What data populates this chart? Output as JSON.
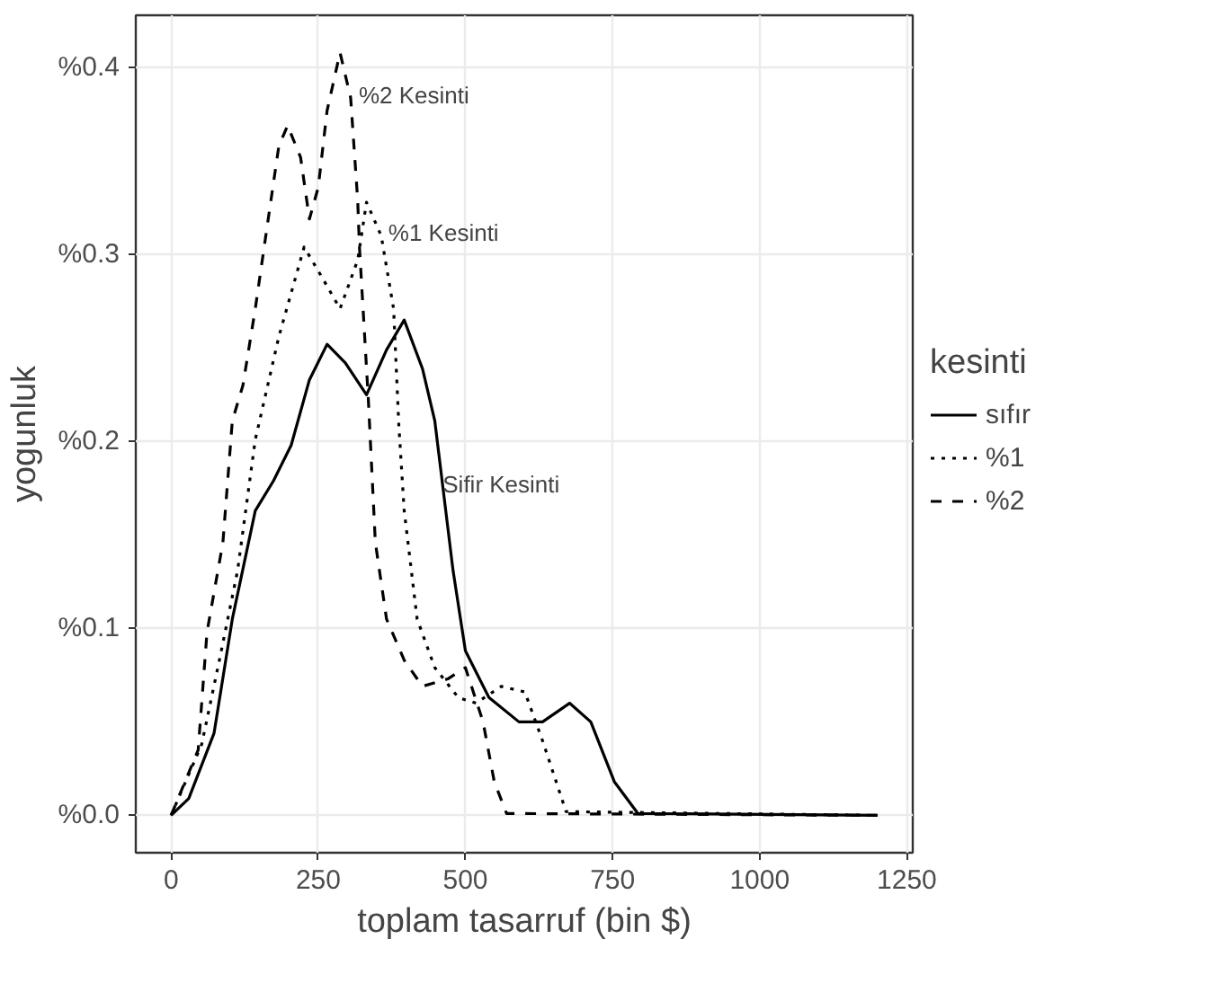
{
  "chart_data": {
    "type": "line",
    "xlabel": "toplam tasarruf (bin $)",
    "ylabel": "yogunluk",
    "legend_title": "kesinti",
    "legend": "right",
    "grid": true,
    "xlim": [
      -60,
      1260
    ],
    "ylim": [
      -0.02,
      0.428
    ],
    "xticks": [
      0,
      250,
      500,
      750,
      1000,
      1250
    ],
    "yticks": [
      {
        "value": 0.0,
        "label": "%0.0"
      },
      {
        "value": 0.1,
        "label": "%0.1"
      },
      {
        "value": 0.2,
        "label": "%0.2"
      },
      {
        "value": 0.3,
        "label": "%0.3"
      },
      {
        "value": 0.4,
        "label": "%0.4"
      }
    ],
    "series": [
      {
        "name": "sıfır",
        "color": "#000000",
        "line_style": "solid",
        "x": [
          0,
          30,
          73,
          104,
          143,
          174,
          204,
          235,
          265,
          296,
          332,
          366,
          396,
          427,
          448,
          479,
          500,
          540,
          591,
          631,
          677,
          713,
          753,
          793,
          1200
        ],
        "values": [
          0,
          0.009,
          0.044,
          0.105,
          0.163,
          0.179,
          0.198,
          0.233,
          0.252,
          0.242,
          0.225,
          0.249,
          0.265,
          0.239,
          0.211,
          0.131,
          0.088,
          0.063,
          0.05,
          0.05,
          0.06,
          0.05,
          0.018,
          0.001,
          0
        ]
      },
      {
        "name": "%1",
        "color": "#000000",
        "line_style": "dotted",
        "x": [
          0,
          52,
          82,
          113,
          143,
          183,
          226,
          256,
          287,
          317,
          332,
          357,
          378,
          387,
          396,
          418,
          448,
          488,
          518,
          561,
          601,
          631,
          671,
          1200
        ],
        "values": [
          0,
          0.038,
          0.083,
          0.131,
          0.201,
          0.256,
          0.304,
          0.288,
          0.271,
          0.297,
          0.328,
          0.31,
          0.271,
          0.208,
          0.163,
          0.105,
          0.079,
          0.063,
          0.06,
          0.069,
          0.066,
          0.04,
          0.002,
          0
        ]
      },
      {
        "name": "%2",
        "color": "#000000",
        "line_style": "dashed",
        "x": [
          0,
          46,
          61,
          88,
          104,
          122,
          143,
          165,
          183,
          198,
          220,
          235,
          250,
          265,
          287,
          305,
          317,
          320,
          335,
          347,
          366,
          396,
          427,
          470,
          500,
          530,
          549,
          570,
          1200
        ],
        "values": [
          0,
          0.035,
          0.098,
          0.146,
          0.211,
          0.23,
          0.271,
          0.319,
          0.358,
          0.369,
          0.352,
          0.319,
          0.336,
          0.377,
          0.408,
          0.384,
          0.329,
          0.304,
          0.223,
          0.146,
          0.105,
          0.083,
          0.069,
          0.073,
          0.079,
          0.05,
          0.018,
          0.001,
          0
        ]
      }
    ],
    "annotations": [
      "%2 Kesinti",
      "%1 Kesinti",
      "Sifir Kesinti"
    ]
  }
}
